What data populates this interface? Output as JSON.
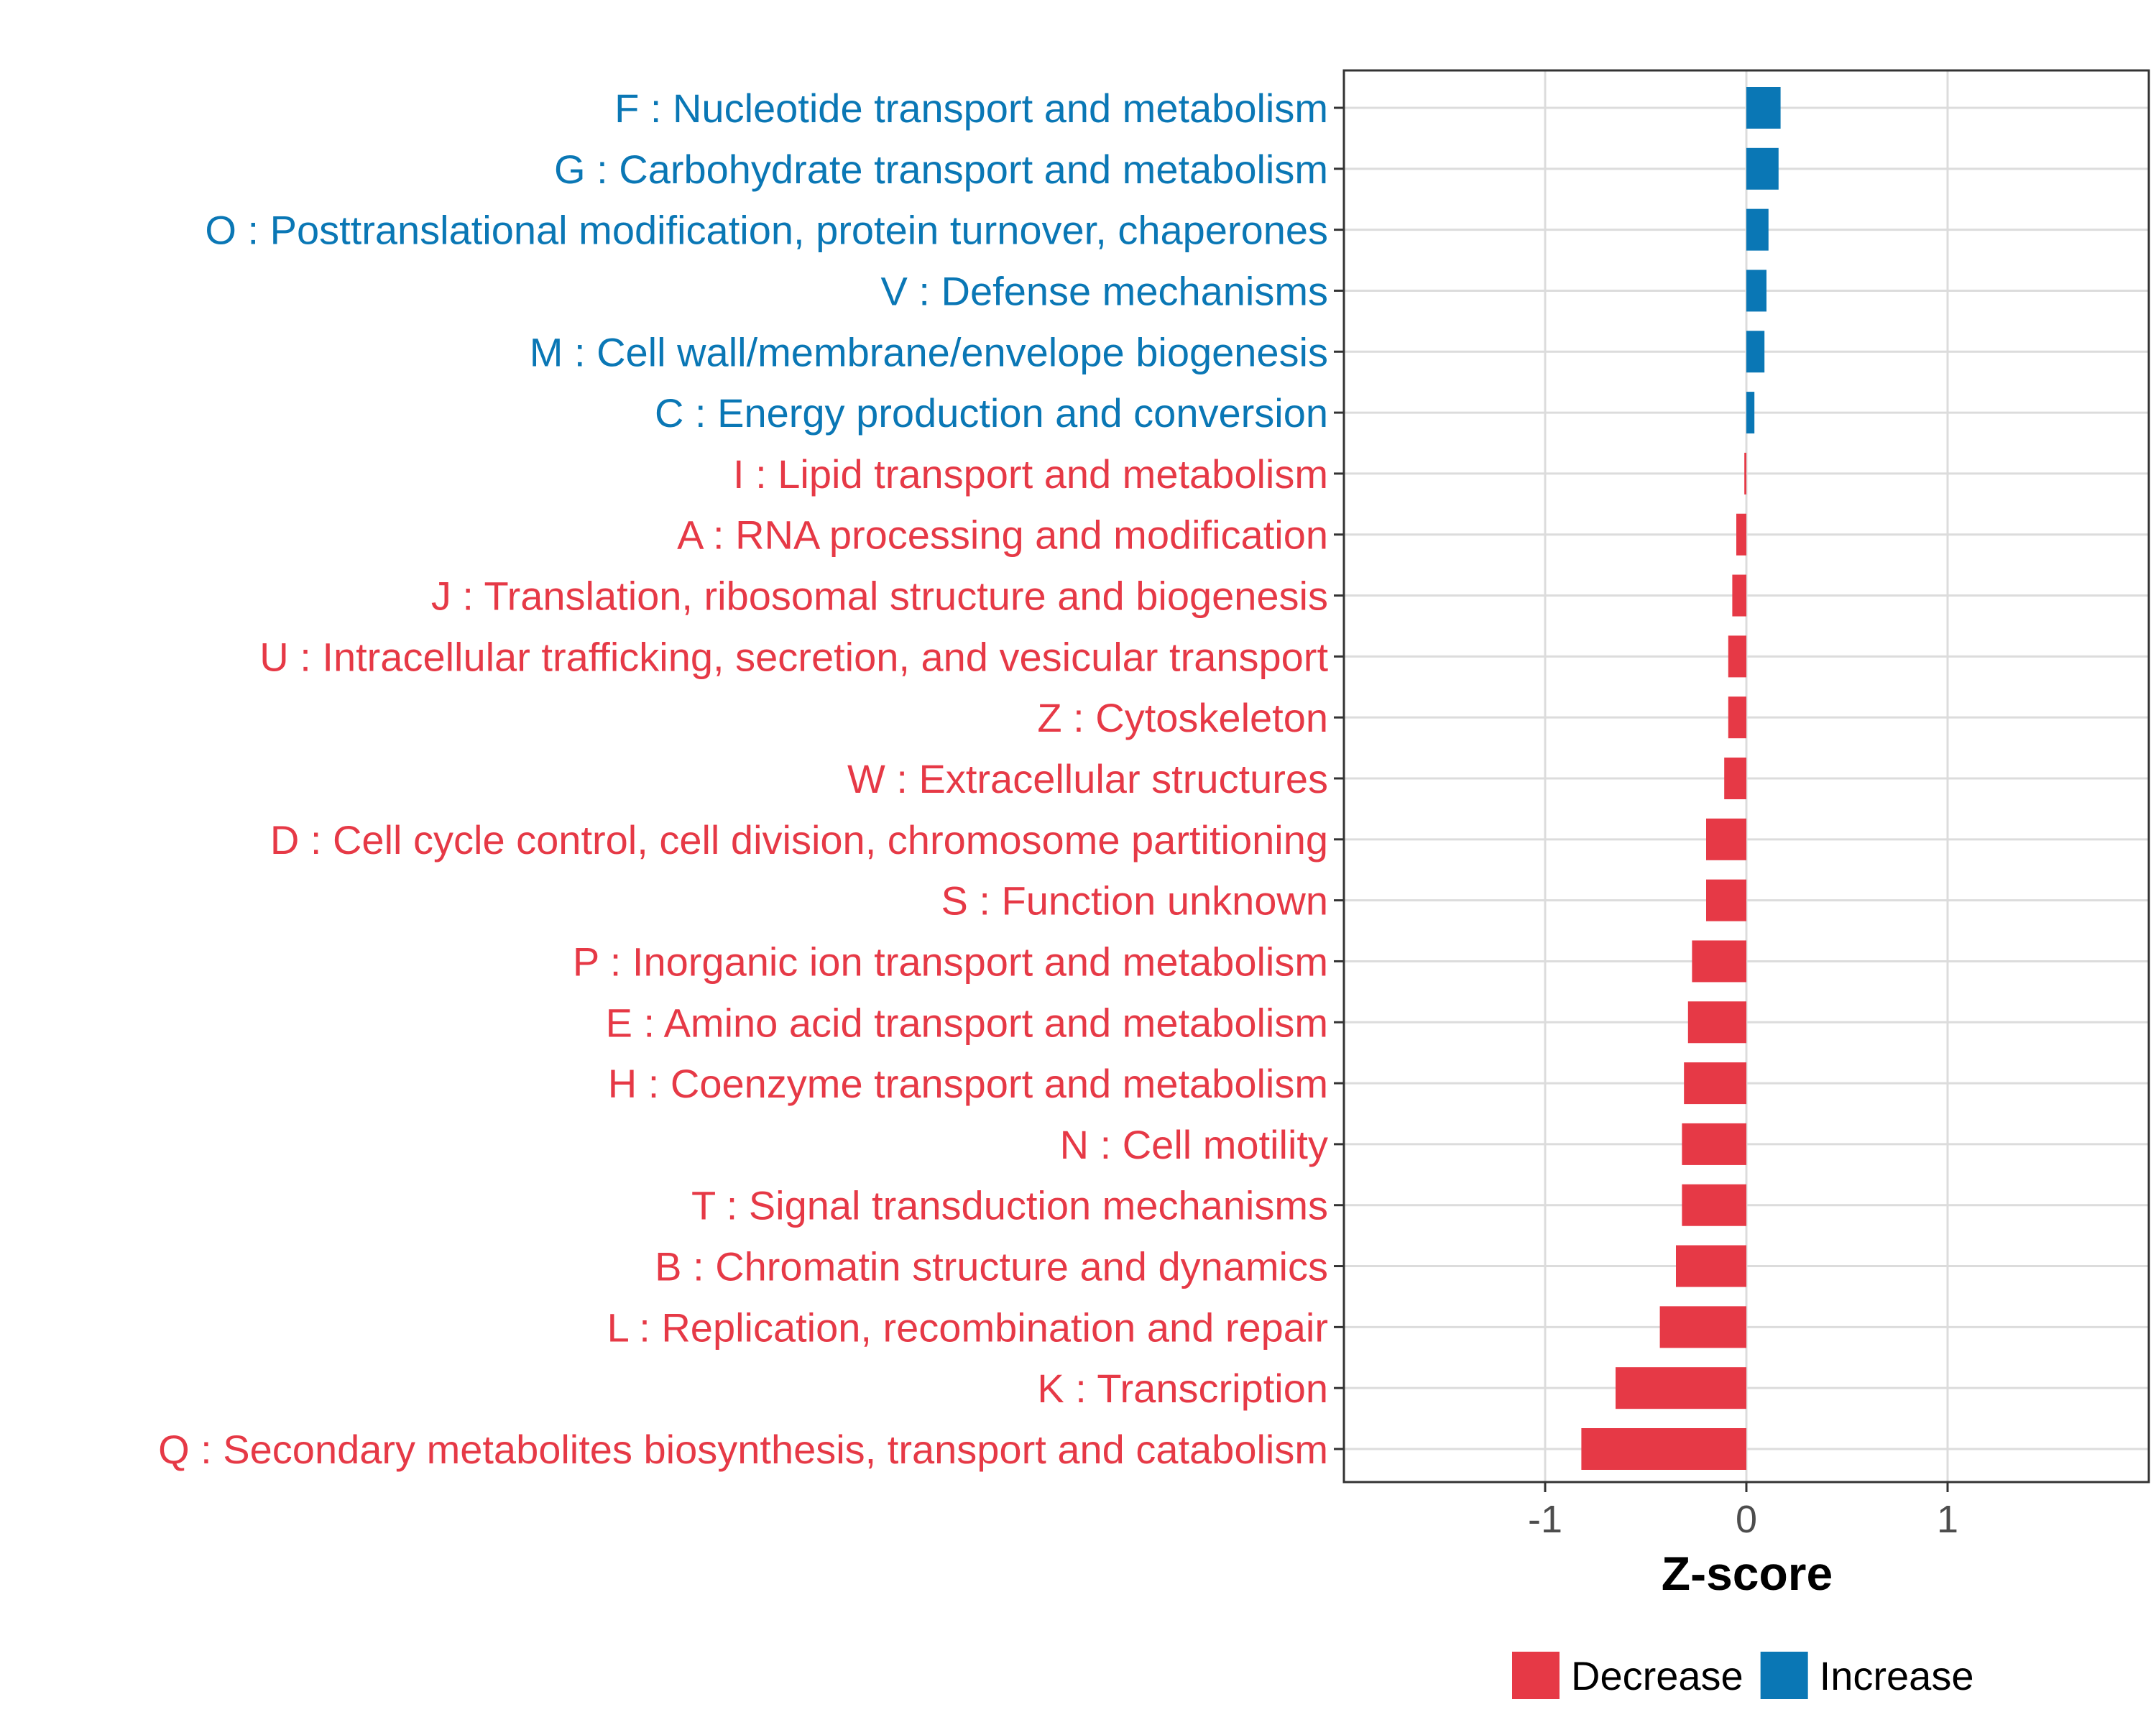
{
  "chart_data": {
    "type": "bar",
    "orientation": "horizontal",
    "title": "",
    "xlabel": "Z-score",
    "ylabel": "",
    "xlim": [
      -2.0,
      2.0
    ],
    "x_ticks": [
      -1,
      0,
      1
    ],
    "x_tick_labels": [
      "-1",
      "0",
      "1"
    ],
    "grid": true,
    "legend_position": "bottom",
    "colors": {
      "Decrease": "#E63946",
      "Increase": "#0A77B5"
    },
    "legend": [
      {
        "label": "Decrease",
        "color": "#E63946"
      },
      {
        "label": "Increase",
        "color": "#0A77B5"
      }
    ],
    "bars": [
      {
        "label": "F : Nucleotide transport and metabolism",
        "value": 0.17,
        "group": "Increase"
      },
      {
        "label": "G : Carbohydrate transport and metabolism",
        "value": 0.16,
        "group": "Increase"
      },
      {
        "label": "O : Posttranslational modification, protein turnover, chaperones",
        "value": 0.11,
        "group": "Increase"
      },
      {
        "label": "V : Defense mechanisms",
        "value": 0.1,
        "group": "Increase"
      },
      {
        "label": "M : Cell wall/membrane/envelope biogenesis",
        "value": 0.09,
        "group": "Increase"
      },
      {
        "label": "C : Energy production and conversion",
        "value": 0.04,
        "group": "Increase"
      },
      {
        "label": "I : Lipid transport and metabolism",
        "value": -0.01,
        "group": "Decrease"
      },
      {
        "label": "A : RNA processing and modification",
        "value": -0.05,
        "group": "Decrease"
      },
      {
        "label": "J : Translation, ribosomal structure and biogenesis",
        "value": -0.07,
        "group": "Decrease"
      },
      {
        "label": "U : Intracellular trafficking, secretion, and vesicular transport",
        "value": -0.09,
        "group": "Decrease"
      },
      {
        "label": "Z : Cytoskeleton",
        "value": -0.09,
        "group": "Decrease"
      },
      {
        "label": "W : Extracellular structures",
        "value": -0.11,
        "group": "Decrease"
      },
      {
        "label": "D : Cell cycle control, cell division, chromosome partitioning",
        "value": -0.2,
        "group": "Decrease"
      },
      {
        "label": "S : Function unknown",
        "value": -0.2,
        "group": "Decrease"
      },
      {
        "label": "P : Inorganic ion transport and metabolism",
        "value": -0.27,
        "group": "Decrease"
      },
      {
        "label": "E : Amino acid transport and metabolism",
        "value": -0.29,
        "group": "Decrease"
      },
      {
        "label": "H : Coenzyme transport and metabolism",
        "value": -0.31,
        "group": "Decrease"
      },
      {
        "label": "N : Cell motility",
        "value": -0.32,
        "group": "Decrease"
      },
      {
        "label": "T : Signal transduction mechanisms",
        "value": -0.32,
        "group": "Decrease"
      },
      {
        "label": "B : Chromatin structure and dynamics",
        "value": -0.35,
        "group": "Decrease"
      },
      {
        "label": "L : Replication, recombination and repair",
        "value": -0.43,
        "group": "Decrease"
      },
      {
        "label": "K : Transcription",
        "value": -0.65,
        "group": "Decrease"
      },
      {
        "label": "Q : Secondary metabolites biosynthesis, transport and catabolism",
        "value": -0.82,
        "group": "Decrease"
      }
    ]
  }
}
